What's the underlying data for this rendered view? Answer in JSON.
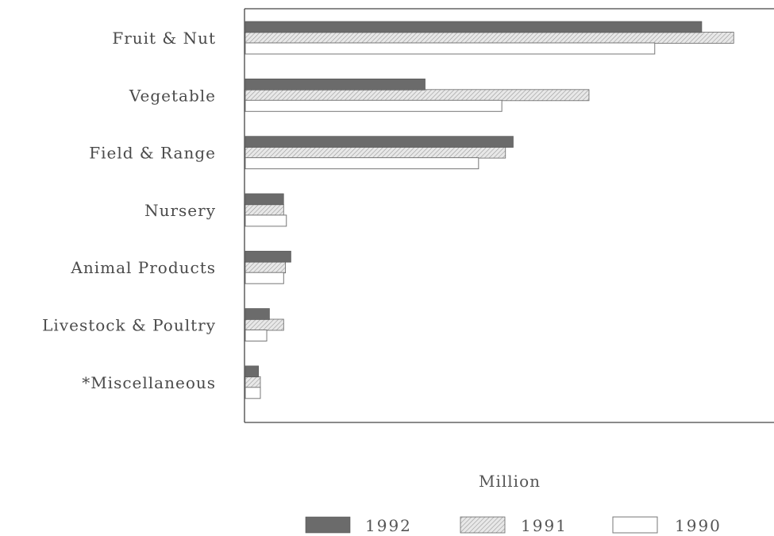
{
  "chart_data": {
    "type": "bar",
    "orientation": "horizontal",
    "categories": [
      "Fruit & Nut",
      "Vegetable",
      "Field & Range",
      "Nursery",
      "Animal Products",
      "Livestock & Poultry",
      "*Miscellaneous"
    ],
    "series": [
      {
        "name": "1992",
        "values": [
          1000,
          394,
          587,
          84,
          100,
          53,
          29
        ],
        "color": "#6b6b6b",
        "fill": "solid"
      },
      {
        "name": "1991",
        "values": [
          1070,
          753,
          570,
          84,
          88,
          84,
          33
        ],
        "color": "#d6d6d6",
        "fill": "hatched"
      },
      {
        "name": "1990",
        "values": [
          897,
          562,
          511,
          90,
          84,
          47,
          33
        ],
        "color": "#ffffff",
        "fill": "outline"
      }
    ],
    "xlabel": "Million",
    "ylabel": "",
    "xlim": [
      0,
      1150
    ],
    "grid": false,
    "legend_position": "bottom"
  }
}
